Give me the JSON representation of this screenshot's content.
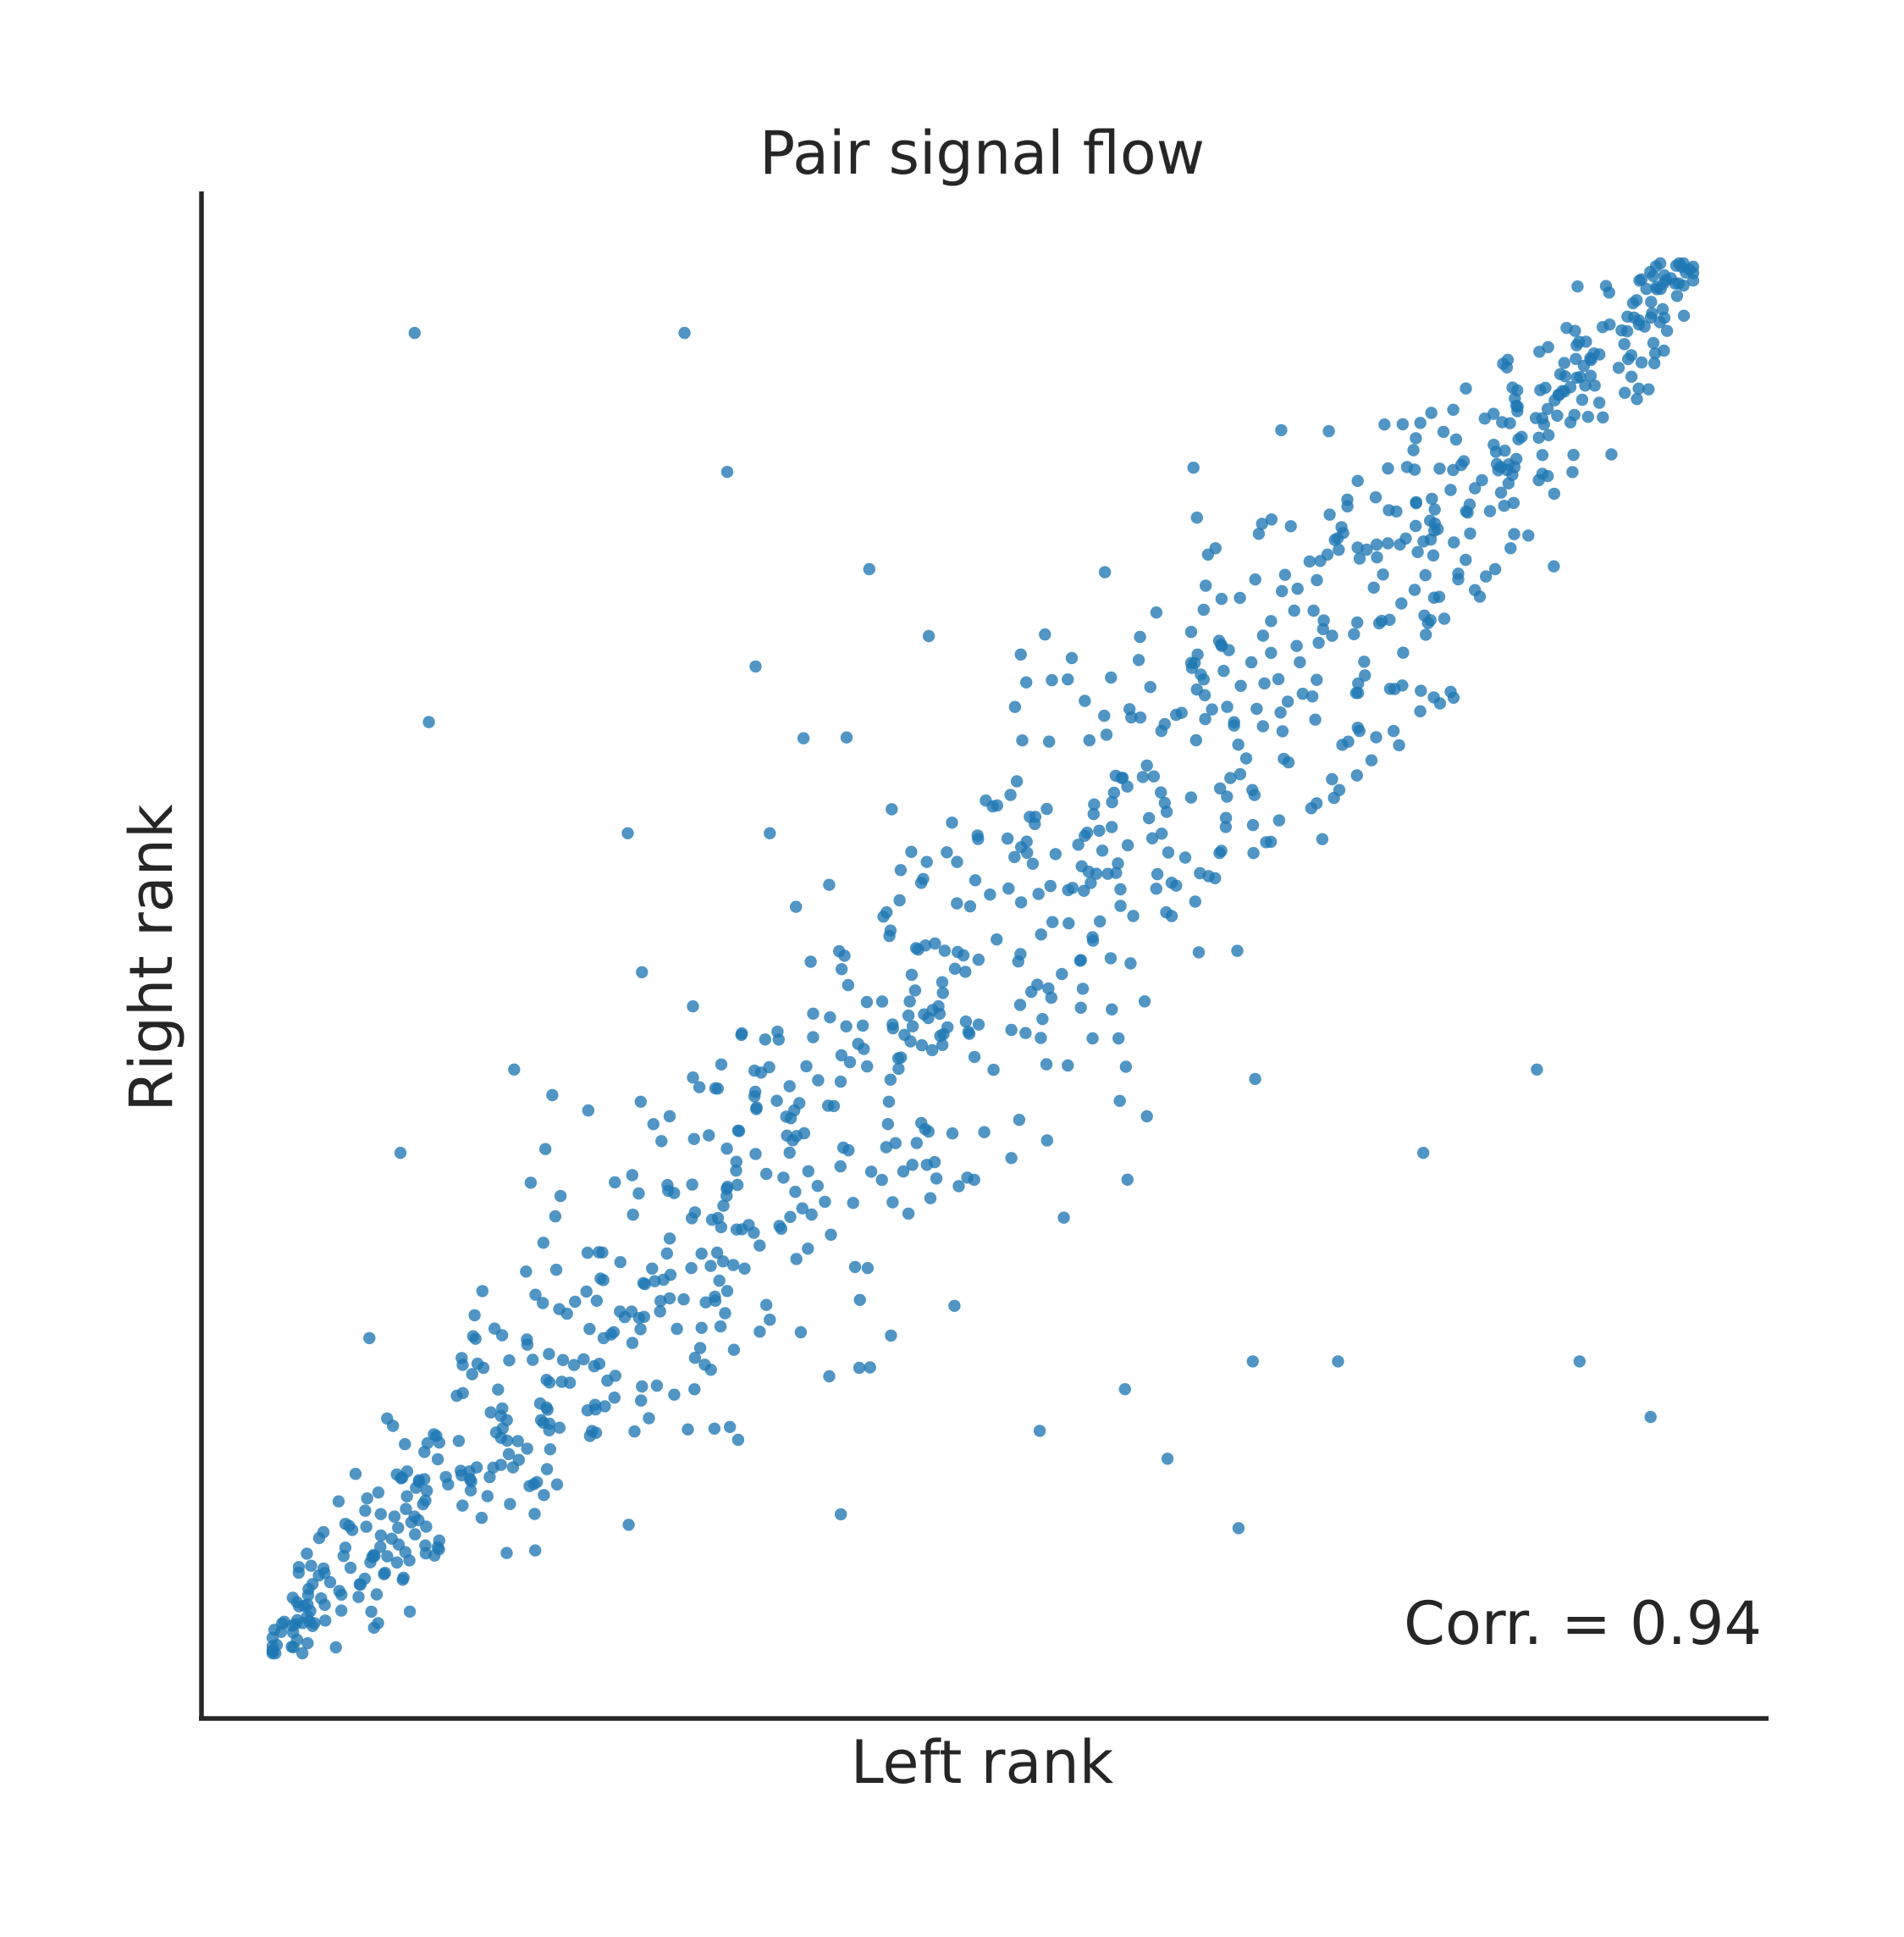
{
  "chart_data": {
    "type": "scatter",
    "title": "Pair signal flow",
    "xlabel": "Left rank",
    "ylabel": "Right rank",
    "annotation": "Corr. = 0.94",
    "correlation": 0.94,
    "xlim": [
      0,
      1
    ],
    "ylim": [
      0,
      1
    ],
    "grid": false,
    "x_ticks_shown": false,
    "y_ticks_shown": false,
    "point_color": "#1f77b4",
    "point_count": 1000,
    "outliers": [
      {
        "x": 0.1,
        "y": 0.95
      },
      {
        "x": 0.29,
        "y": 0.95
      },
      {
        "x": 0.32,
        "y": 0.85
      },
      {
        "x": 0.42,
        "y": 0.78
      },
      {
        "x": 0.11,
        "y": 0.67
      },
      {
        "x": 0.34,
        "y": 0.71
      },
      {
        "x": 0.51,
        "y": 0.61
      },
      {
        "x": 0.43,
        "y": 0.53
      },
      {
        "x": 0.35,
        "y": 0.59
      },
      {
        "x": 0.25,
        "y": 0.59
      },
      {
        "x": 0.26,
        "y": 0.49
      },
      {
        "x": 0.17,
        "y": 0.42
      },
      {
        "x": 0.71,
        "y": 0.88
      },
      {
        "x": 0.75,
        "y": 0.21
      },
      {
        "x": 0.68,
        "y": 0.09
      },
      {
        "x": 0.69,
        "y": 0.21
      },
      {
        "x": 0.97,
        "y": 0.17
      },
      {
        "x": 0.6,
        "y": 0.19
      },
      {
        "x": 0.63,
        "y": 0.14
      },
      {
        "x": 0.54,
        "y": 0.16
      },
      {
        "x": 0.4,
        "y": 0.1
      },
      {
        "x": 0.48,
        "y": 0.25
      },
      {
        "x": 0.35,
        "y": 0.24
      },
      {
        "x": 0.89,
        "y": 0.42
      },
      {
        "x": 0.92,
        "y": 0.21
      },
      {
        "x": 0.81,
        "y": 0.36
      },
      {
        "x": 0.05,
        "y": 0.07
      },
      {
        "x": 0.09,
        "y": 0.36
      },
      {
        "x": 0.84,
        "y": 0.91
      }
    ]
  }
}
